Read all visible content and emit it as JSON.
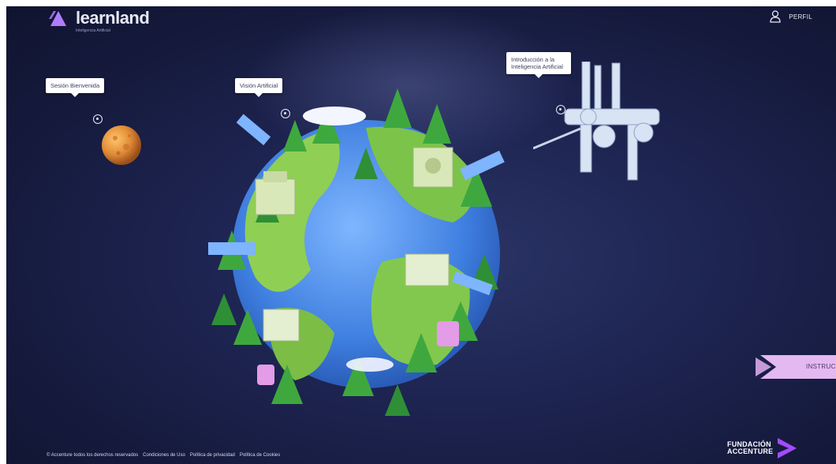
{
  "header": {
    "logo_text": "learnland",
    "logo_subtitle": "Inteligencia Artificial",
    "profile_label": "PERFIL"
  },
  "hotspots": {
    "moon": {
      "label": "Sesión Bienvenida"
    },
    "planet": {
      "label": "Visión Artificial"
    },
    "station": {
      "label": "Introducción a la Inteligencia Artificial"
    }
  },
  "instructions": {
    "label": "INSTRUC"
  },
  "footer": {
    "copyright": "© Accenture todos los derechos reservados",
    "links": [
      "Condiciones de Uso",
      "Política de privacidad",
      "Política de Cookies"
    ]
  },
  "brand": {
    "line1": "FUNDACIÓN",
    "line2": "ACCENTURE"
  },
  "colors": {
    "background": "#1a2048",
    "accent_purple": "#a24bff",
    "tab_pink": "#e4b8f0",
    "text_light": "#e9eaf5"
  },
  "icons": [
    "learnland-logo-icon",
    "user-icon",
    "location-marker-icon",
    "accenture-chevron-icon"
  ]
}
